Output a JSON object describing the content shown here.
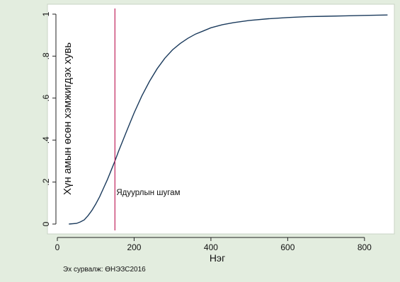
{
  "chart_data": {
    "type": "line",
    "title": "",
    "xlabel": "Нэг",
    "ylabel": "Хүн амын өсөн хэмжигдэх хувь",
    "source": "Эх сурвалж: ӨНЭЗС2016",
    "xlim": [
      0,
      860
    ],
    "ylim": [
      0,
      1
    ],
    "x_ticks": [
      0,
      200,
      400,
      600,
      800
    ],
    "x_tick_labels": [
      "0",
      "200",
      "400",
      "600",
      "800"
    ],
    "y_ticks": [
      0,
      0.2,
      0.4,
      0.6,
      0.8,
      1
    ],
    "y_tick_labels": [
      "0",
      ".2",
      ".4",
      ".6",
      ".8",
      "1"
    ],
    "grid": false,
    "series": [
      {
        "color": "#1a3a5c",
        "x": [
          30,
          50,
          60,
          70,
          80,
          90,
          100,
          110,
          120,
          130,
          140,
          150,
          160,
          170,
          180,
          190,
          200,
          220,
          240,
          260,
          280,
          300,
          320,
          340,
          360,
          380,
          400,
          430,
          460,
          500,
          550,
          600,
          650,
          700,
          750,
          800,
          860
        ],
        "y": [
          0.0,
          0.003,
          0.01,
          0.02,
          0.04,
          0.065,
          0.095,
          0.13,
          0.17,
          0.21,
          0.255,
          0.3,
          0.35,
          0.395,
          0.44,
          0.485,
          0.53,
          0.61,
          0.68,
          0.74,
          0.79,
          0.83,
          0.86,
          0.885,
          0.905,
          0.92,
          0.935,
          0.95,
          0.96,
          0.97,
          0.978,
          0.984,
          0.988,
          0.99,
          0.992,
          0.994,
          0.996
        ]
      }
    ],
    "annotations": [
      {
        "text": "Ядуурлын шугам",
        "x": 150,
        "color": "#c0235d"
      }
    ]
  }
}
